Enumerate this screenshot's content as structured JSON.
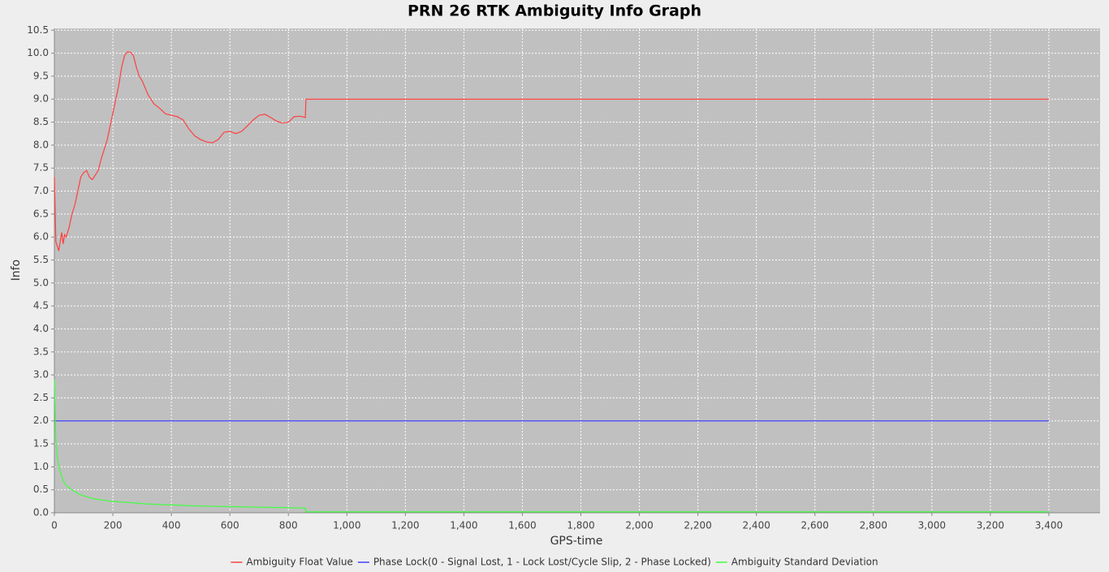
{
  "chart_data": {
    "type": "line",
    "title": "PRN 26 RTK Ambiguity Info Graph",
    "x_label": "GPS-time",
    "y_label": "Info",
    "x": [
      0,
      5,
      10,
      15,
      20,
      25,
      30,
      35,
      40,
      45,
      50,
      60,
      70,
      80,
      90,
      100,
      110,
      120,
      130,
      140,
      150,
      160,
      170,
      180,
      190,
      200,
      210,
      220,
      230,
      240,
      250,
      260,
      270,
      280,
      290,
      300,
      320,
      340,
      360,
      380,
      400,
      420,
      440,
      460,
      480,
      500,
      520,
      540,
      560,
      580,
      600,
      620,
      640,
      660,
      680,
      700,
      720,
      740,
      760,
      780,
      800,
      820,
      840,
      858,
      860,
      3400
    ],
    "series": [
      {
        "name": "Ambiguity Float Value",
        "color": "#ff4040",
        "values": [
          7.3,
          5.9,
          5.8,
          5.7,
          5.9,
          6.1,
          5.85,
          6.05,
          6.0,
          6.1,
          6.2,
          6.5,
          6.7,
          7.0,
          7.3,
          7.4,
          7.45,
          7.3,
          7.25,
          7.35,
          7.45,
          7.7,
          7.9,
          8.1,
          8.4,
          8.7,
          9.0,
          9.3,
          9.7,
          9.95,
          10.03,
          10.02,
          9.95,
          9.7,
          9.5,
          9.4,
          9.1,
          8.9,
          8.8,
          8.68,
          8.65,
          8.62,
          8.55,
          8.35,
          8.2,
          8.12,
          8.07,
          8.05,
          8.12,
          8.28,
          8.3,
          8.25,
          8.3,
          8.42,
          8.55,
          8.65,
          8.67,
          8.6,
          8.52,
          8.48,
          8.5,
          8.62,
          8.63,
          8.6,
          9.0,
          9.0
        ]
      },
      {
        "name": "Phase Lock(0 - Signal Lost, 1 - Lock Lost/Cycle Slip, 2 - Phase Locked)",
        "color": "#4040ff",
        "values": [
          2,
          2,
          2,
          2,
          2,
          2,
          2,
          2,
          2,
          2,
          2,
          2,
          2,
          2,
          2,
          2,
          2,
          2,
          2,
          2,
          2,
          2,
          2,
          2,
          2,
          2,
          2,
          2,
          2,
          2,
          2,
          2,
          2,
          2,
          2,
          2,
          2,
          2,
          2,
          2,
          2,
          2,
          2,
          2,
          2,
          2,
          2,
          2,
          2,
          2,
          2,
          2,
          2,
          2,
          2,
          2,
          2,
          2,
          2,
          2,
          2,
          2,
          2,
          2,
          2,
          2
        ]
      },
      {
        "name": "Ambiguity Standard Deviation",
        "color": "#40ff40",
        "values": [
          2.9,
          1.6,
          1.2,
          1.0,
          0.9,
          0.8,
          0.7,
          0.65,
          0.6,
          0.57,
          0.55,
          0.5,
          0.46,
          0.42,
          0.39,
          0.37,
          0.35,
          0.33,
          0.31,
          0.3,
          0.29,
          0.28,
          0.27,
          0.26,
          0.255,
          0.25,
          0.245,
          0.24,
          0.235,
          0.23,
          0.225,
          0.22,
          0.215,
          0.21,
          0.205,
          0.2,
          0.19,
          0.185,
          0.18,
          0.175,
          0.17,
          0.165,
          0.16,
          0.155,
          0.15,
          0.148,
          0.145,
          0.142,
          0.14,
          0.137,
          0.135,
          0.132,
          0.13,
          0.127,
          0.125,
          0.122,
          0.12,
          0.117,
          0.115,
          0.112,
          0.11,
          0.107,
          0.105,
          0.1,
          0.02,
          0.02
        ]
      }
    ],
    "xlim": [
      0,
      3575
    ],
    "ylim": [
      0,
      10.54
    ],
    "xticks": [
      0,
      200,
      400,
      600,
      800,
      {
        "value": 1000,
        "label": "1,000"
      },
      {
        "value": 1200,
        "label": "1,200"
      },
      {
        "value": 1400,
        "label": "1,400"
      },
      {
        "value": 1600,
        "label": "1,600"
      },
      {
        "value": 1800,
        "label": "1,800"
      },
      {
        "value": 2000,
        "label": "2,000"
      },
      {
        "value": 2200,
        "label": "2,200"
      },
      {
        "value": 2400,
        "label": "2,400"
      },
      {
        "value": 2600,
        "label": "2,600"
      },
      {
        "value": 2800,
        "label": "2,800"
      },
      {
        "value": 3000,
        "label": "3,000"
      },
      {
        "value": 3200,
        "label": "3,200"
      },
      {
        "value": 3400,
        "label": "3,400"
      }
    ],
    "yticks": [
      {
        "value": 0,
        "label": "0.0"
      },
      {
        "value": 0.5,
        "label": "0.5"
      },
      {
        "value": 1,
        "label": "1.0"
      },
      {
        "value": 1.5,
        "label": "1.5"
      },
      {
        "value": 2,
        "label": "2.0"
      },
      {
        "value": 2.5,
        "label": "2.5"
      },
      {
        "value": 3,
        "label": "3.0"
      },
      {
        "value": 3.5,
        "label": "3.5"
      },
      {
        "value": 4,
        "label": "4.0"
      },
      {
        "value": 4.5,
        "label": "4.5"
      },
      {
        "value": 5,
        "label": "5.0"
      },
      {
        "value": 5.5,
        "label": "5.5"
      },
      {
        "value": 6,
        "label": "6.0"
      },
      {
        "value": 6.5,
        "label": "6.5"
      },
      {
        "value": 7,
        "label": "7.0"
      },
      {
        "value": 7.5,
        "label": "7.5"
      },
      {
        "value": 8,
        "label": "8.0"
      },
      {
        "value": 8.5,
        "label": "8.5"
      },
      {
        "value": 9,
        "label": "9.0"
      },
      {
        "value": 9.5,
        "label": "9.5"
      },
      {
        "value": 10,
        "label": "10.0"
      },
      {
        "value": 10.5,
        "label": "10.5"
      }
    ],
    "grid": true,
    "legend": "bottom"
  }
}
